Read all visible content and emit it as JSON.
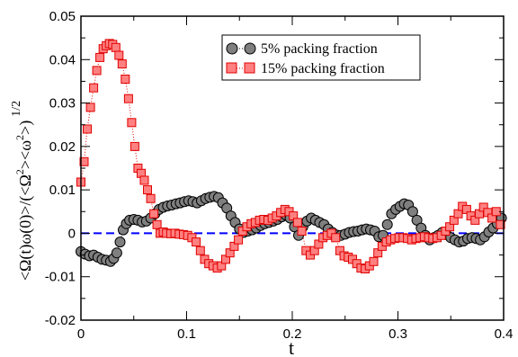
{
  "chart_data": {
    "type": "scatter",
    "xlabel": "t",
    "ylabel": "<Ω(t)ω(0)>/(<Ω²><ω²>)^1/2",
    "ylabel_main": "<Ω(t)ω(0)>/(<Ω",
    "ylabel_sup1": "2",
    "ylabel_mid": "><ω",
    "ylabel_sup2": "2",
    "ylabel_end": ">)",
    "ylabel_power": "1/2",
    "xlim": [
      0,
      0.4
    ],
    "ylim": [
      -0.02,
      0.05
    ],
    "x_ticks": [
      0,
      0.1,
      0.2,
      0.3,
      0.4
    ],
    "x_tick_labels": [
      "0",
      "0.1",
      "0.2",
      "0.3",
      "0.4"
    ],
    "y_ticks": [
      -0.02,
      -0.01,
      0,
      0.01,
      0.02,
      0.03,
      0.04,
      0.05
    ],
    "y_tick_labels": [
      "-0.02",
      "-0.01",
      "0",
      "0.01",
      "0.02",
      "0.03",
      "0.04",
      "0.05"
    ],
    "reference_line": {
      "y": 0,
      "style": "dashed",
      "color": "#0000ff"
    },
    "legend_position": "top-right",
    "series": [
      {
        "name": "5% packing fraction",
        "marker": "circle",
        "line_style": "dotted",
        "color": "#7f7f7f",
        "edge_color": "#000000",
        "points": [
          [
            0.0,
            -0.0042
          ],
          [
            0.004,
            -0.0048
          ],
          [
            0.008,
            -0.0052
          ],
          [
            0.012,
            -0.005
          ],
          [
            0.016,
            -0.0055
          ],
          [
            0.02,
            -0.006
          ],
          [
            0.024,
            -0.0062
          ],
          [
            0.028,
            -0.0065
          ],
          [
            0.031,
            -0.0058
          ],
          [
            0.034,
            -0.0045
          ],
          [
            0.037,
            -0.002
          ],
          [
            0.04,
            0.0008
          ],
          [
            0.043,
            0.0022
          ],
          [
            0.046,
            0.003
          ],
          [
            0.05,
            0.0032
          ],
          [
            0.054,
            0.003
          ],
          [
            0.058,
            0.0026
          ],
          [
            0.062,
            0.0028
          ],
          [
            0.066,
            0.0035
          ],
          [
            0.07,
            0.0045
          ],
          [
            0.074,
            0.0055
          ],
          [
            0.078,
            0.006
          ],
          [
            0.082,
            0.0063
          ],
          [
            0.086,
            0.0065
          ],
          [
            0.09,
            0.0068
          ],
          [
            0.094,
            0.007
          ],
          [
            0.098,
            0.0073
          ],
          [
            0.102,
            0.0075
          ],
          [
            0.106,
            0.0073
          ],
          [
            0.11,
            0.007
          ],
          [
            0.114,
            0.0075
          ],
          [
            0.118,
            0.008
          ],
          [
            0.122,
            0.0083
          ],
          [
            0.126,
            0.0085
          ],
          [
            0.13,
            0.0082
          ],
          [
            0.134,
            0.007
          ],
          [
            0.138,
            0.0058
          ],
          [
            0.142,
            0.004
          ],
          [
            0.146,
            0.0025
          ],
          [
            0.15,
            0.001
          ],
          [
            0.154,
            0.0002
          ],
          [
            0.158,
            0.0005
          ],
          [
            0.162,
            0.0008
          ],
          [
            0.166,
            0.0012
          ],
          [
            0.17,
            0.0018
          ],
          [
            0.174,
            0.0022
          ],
          [
            0.178,
            0.0025
          ],
          [
            0.182,
            0.0028
          ],
          [
            0.186,
            0.0032
          ],
          [
            0.19,
            0.0038
          ],
          [
            0.194,
            0.0042
          ],
          [
            0.198,
            0.0035
          ],
          [
            0.202,
            0.0015
          ],
          [
            0.206,
            -0.0005
          ],
          [
            0.21,
            0.0015
          ],
          [
            0.214,
            0.0028
          ],
          [
            0.218,
            0.0035
          ],
          [
            0.222,
            0.003
          ],
          [
            0.226,
            0.0025
          ],
          [
            0.23,
            0.002
          ],
          [
            0.234,
            0.001
          ],
          [
            0.238,
            0.0002
          ],
          [
            0.242,
            -0.0004
          ],
          [
            0.246,
            -0.0005
          ],
          [
            0.25,
            -0.0002
          ],
          [
            0.254,
            0.0002
          ],
          [
            0.258,
            0.0004
          ],
          [
            0.262,
            0.0005
          ],
          [
            0.266,
            0.0008
          ],
          [
            0.27,
            0.001
          ],
          [
            0.274,
            0.0008
          ],
          [
            0.278,
            0.0005
          ],
          [
            0.282,
            -0.0008
          ],
          [
            0.286,
            -0.0005
          ],
          [
            0.29,
            0.002
          ],
          [
            0.294,
            0.0045
          ],
          [
            0.298,
            0.0055
          ],
          [
            0.302,
            0.0062
          ],
          [
            0.306,
            0.0068
          ],
          [
            0.31,
            0.0065
          ],
          [
            0.314,
            0.005
          ],
          [
            0.318,
            0.003
          ],
          [
            0.322,
            0.0012
          ],
          [
            0.326,
            -0.0005
          ],
          [
            0.33,
            -0.0015
          ],
          [
            0.334,
            -0.001
          ],
          [
            0.338,
            -0.0005
          ],
          [
            0.342,
            0.0002
          ],
          [
            0.346,
            -0.0003
          ],
          [
            0.35,
            -0.001
          ],
          [
            0.354,
            -0.0015
          ],
          [
            0.358,
            -0.002
          ],
          [
            0.362,
            -0.0018
          ],
          [
            0.366,
            -0.0012
          ],
          [
            0.37,
            -0.001
          ],
          [
            0.374,
            -0.0012
          ],
          [
            0.378,
            -0.0015
          ],
          [
            0.382,
            -0.0008
          ],
          [
            0.386,
            0.0003
          ],
          [
            0.39,
            0.0012
          ],
          [
            0.394,
            0.0022
          ],
          [
            0.398,
            0.0035
          ]
        ]
      },
      {
        "name": "15% packing fraction",
        "marker": "square",
        "line_style": "dotted",
        "color": "#ff8080",
        "edge_color": "#e00000",
        "points": [
          [
            0.0,
            0.0118
          ],
          [
            0.003,
            0.0165
          ],
          [
            0.006,
            0.024
          ],
          [
            0.009,
            0.029
          ],
          [
            0.012,
            0.0335
          ],
          [
            0.015,
            0.0375
          ],
          [
            0.018,
            0.0405
          ],
          [
            0.021,
            0.0425
          ],
          [
            0.024,
            0.0432
          ],
          [
            0.027,
            0.0437
          ],
          [
            0.03,
            0.0435
          ],
          [
            0.033,
            0.0428
          ],
          [
            0.036,
            0.041
          ],
          [
            0.039,
            0.039
          ],
          [
            0.042,
            0.0355
          ],
          [
            0.045,
            0.031
          ],
          [
            0.048,
            0.0255
          ],
          [
            0.051,
            0.02
          ],
          [
            0.054,
            0.015
          ],
          [
            0.057,
            0.0138
          ],
          [
            0.06,
            0.0122
          ],
          [
            0.063,
            0.01
          ],
          [
            0.066,
            0.008
          ],
          [
            0.069,
            0.0045
          ],
          [
            0.072,
            0.002
          ],
          [
            0.075,
            0.0
          ],
          [
            0.078,
            0.0003
          ],
          [
            0.081,
            0.0
          ],
          [
            0.085,
            -0.0001
          ],
          [
            0.089,
            0.0
          ],
          [
            0.093,
            -0.0002
          ],
          [
            0.097,
            -0.0003
          ],
          [
            0.101,
            -0.0005
          ],
          [
            0.105,
            -0.001
          ],
          [
            0.109,
            -0.002
          ],
          [
            0.113,
            -0.004
          ],
          [
            0.117,
            -0.006
          ],
          [
            0.121,
            -0.007
          ],
          [
            0.125,
            -0.0075
          ],
          [
            0.129,
            -0.008
          ],
          [
            0.133,
            -0.0075
          ],
          [
            0.137,
            -0.006
          ],
          [
            0.141,
            -0.0045
          ],
          [
            0.145,
            -0.003
          ],
          [
            0.149,
            -0.0015
          ],
          [
            0.153,
            0.0005
          ],
          [
            0.157,
            0.0015
          ],
          [
            0.161,
            0.0022
          ],
          [
            0.165,
            0.0025
          ],
          [
            0.169,
            0.003
          ],
          [
            0.173,
            0.0032
          ],
          [
            0.177,
            0.003
          ],
          [
            0.181,
            0.0035
          ],
          [
            0.185,
            0.004
          ],
          [
            0.189,
            0.0048
          ],
          [
            0.193,
            0.0055
          ],
          [
            0.197,
            0.005
          ],
          [
            0.201,
            0.004
          ],
          [
            0.205,
            0.0025
          ],
          [
            0.209,
            0.0005
          ],
          [
            0.213,
            -0.004
          ],
          [
            0.217,
            -0.005
          ],
          [
            0.221,
            -0.004
          ],
          [
            0.225,
            -0.0025
          ],
          [
            0.229,
            -0.001
          ],
          [
            0.233,
            -0.0005
          ],
          [
            0.237,
            0.0
          ],
          [
            0.241,
            -0.001
          ],
          [
            0.245,
            -0.004
          ],
          [
            0.249,
            -0.0052
          ],
          [
            0.253,
            -0.0055
          ],
          [
            0.257,
            -0.006
          ],
          [
            0.261,
            -0.007
          ],
          [
            0.265,
            -0.008
          ],
          [
            0.269,
            -0.0082
          ],
          [
            0.273,
            -0.0075
          ],
          [
            0.277,
            -0.0065
          ],
          [
            0.281,
            -0.0045
          ],
          [
            0.285,
            -0.003
          ],
          [
            0.289,
            -0.002
          ],
          [
            0.293,
            -0.0015
          ],
          [
            0.297,
            -0.0012
          ],
          [
            0.301,
            -0.001
          ],
          [
            0.305,
            -0.001
          ],
          [
            0.309,
            -0.0012
          ],
          [
            0.313,
            -0.0015
          ],
          [
            0.317,
            -0.0012
          ],
          [
            0.321,
            -0.001
          ],
          [
            0.325,
            -0.0008
          ],
          [
            0.329,
            -0.001
          ],
          [
            0.333,
            -0.0012
          ],
          [
            0.337,
            -0.001
          ],
          [
            0.341,
            -0.0005
          ],
          [
            0.345,
            0.0005
          ],
          [
            0.349,
            0.0015
          ],
          [
            0.353,
            0.003
          ],
          [
            0.357,
            0.0045
          ],
          [
            0.361,
            0.0062
          ],
          [
            0.365,
            0.0055
          ],
          [
            0.369,
            0.004
          ],
          [
            0.373,
            0.003
          ],
          [
            0.377,
            0.0045
          ],
          [
            0.381,
            0.006
          ],
          [
            0.385,
            0.0048
          ],
          [
            0.389,
            0.0035
          ],
          [
            0.393,
            0.005
          ],
          [
            0.397,
            0.002
          ]
        ]
      }
    ]
  }
}
